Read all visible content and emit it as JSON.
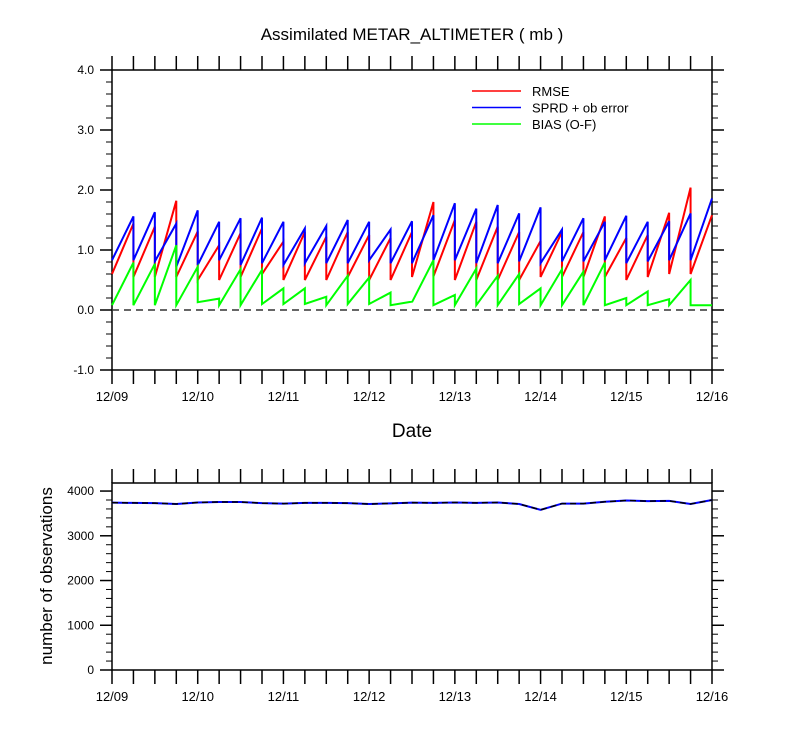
{
  "chart_data": [
    {
      "type": "line",
      "title": "Assimilated METAR_ALTIMETER ( mb )",
      "xlabel": "Date",
      "ylabel": "",
      "ylim": [
        -1.0,
        4.0
      ],
      "yticks": [
        "-1.0",
        "0.0",
        "1.0",
        "2.0",
        "3.0",
        "4.0"
      ],
      "xticks": [
        "12/09",
        "12/10",
        "12/11",
        "12/12",
        "12/13",
        "12/14",
        "12/15",
        "12/16"
      ],
      "x_unit": "6-hour cycles from 12/09 00Z; each cycle drawn from analysis (start) to forecast (end)",
      "zero_line": "dashed",
      "legend_position": "top-right",
      "series": [
        {
          "name": "RMSE",
          "color": "#ff0000",
          "start": [
            0.6,
            0.55,
            0.55,
            0.55,
            0.5,
            0.5,
            0.55,
            0.6,
            0.5,
            0.5,
            0.5,
            0.55,
            0.5,
            0.5,
            0.55,
            0.56,
            0.5,
            0.5,
            0.5,
            0.5,
            0.55,
            0.55,
            0.55,
            0.55,
            0.5,
            0.55,
            0.6,
            0.6
          ],
          "end": [
            1.44,
            1.39,
            1.82,
            1.31,
            1.08,
            1.28,
            1.36,
            1.14,
            1.3,
            1.22,
            1.3,
            1.25,
            1.2,
            1.3,
            1.8,
            1.5,
            1.47,
            1.39,
            1.3,
            1.15,
            1.3,
            1.3,
            1.56,
            1.2,
            1.25,
            1.62,
            2.04,
            1.58
          ]
        },
        {
          "name": "SPRD + ob error",
          "color": "#0000ff",
          "start": [
            0.83,
            0.83,
            0.81,
            0.72,
            0.75,
            0.83,
            0.75,
            0.78,
            0.75,
            0.78,
            0.78,
            0.78,
            0.83,
            0.78,
            0.78,
            0.83,
            0.83,
            0.78,
            0.78,
            0.81,
            0.78,
            0.81,
            0.81,
            0.83,
            0.78,
            0.81,
            0.83,
            0.83
          ],
          "end": [
            1.56,
            1.63,
            1.44,
            1.66,
            1.47,
            1.53,
            1.54,
            1.47,
            1.36,
            1.4,
            1.5,
            1.47,
            1.34,
            1.48,
            1.58,
            1.78,
            1.69,
            1.75,
            1.61,
            1.71,
            1.34,
            1.53,
            1.47,
            1.57,
            1.47,
            1.48,
            1.61,
            1.86
          ]
        },
        {
          "name": "BIAS (O-F)",
          "color": "#00ff00",
          "start": [
            0.08,
            0.08,
            0.08,
            0.08,
            0.13,
            0.08,
            0.08,
            0.1,
            0.1,
            0.1,
            0.08,
            0.1,
            0.1,
            0.08,
            0.13,
            0.08,
            0.08,
            0.08,
            0.08,
            0.1,
            0.08,
            0.08,
            0.08,
            0.08,
            0.08,
            0.08,
            0.08,
            0.08
          ],
          "end": [
            0.79,
            0.77,
            1.08,
            0.72,
            0.19,
            0.68,
            0.67,
            0.36,
            0.36,
            0.22,
            0.57,
            0.54,
            0.29,
            0.14,
            0.83,
            0.25,
            0.69,
            0.57,
            0.6,
            0.36,
            0.68,
            0.64,
            0.79,
            0.2,
            0.31,
            0.18,
            0.5,
            0.08
          ]
        }
      ]
    },
    {
      "type": "line",
      "title": "",
      "xlabel": "",
      "ylabel": "number of observations",
      "ylim": [
        0,
        4180
      ],
      "yticks": [
        "0",
        "1000",
        "2000",
        "3000",
        "4000"
      ],
      "xticks": [
        "12/09",
        "12/10",
        "12/11",
        "12/12",
        "12/13",
        "12/14",
        "12/15",
        "12/16"
      ],
      "series": [
        {
          "name": "observations",
          "color": "#0000ff",
          "values": [
            3740,
            3735,
            3730,
            3710,
            3745,
            3755,
            3755,
            3730,
            3720,
            3735,
            3735,
            3730,
            3710,
            3725,
            3740,
            3735,
            3745,
            3735,
            3745,
            3710,
            3580,
            3720,
            3720,
            3760,
            3790,
            3775,
            3780,
            3710,
            3800
          ]
        }
      ]
    }
  ]
}
